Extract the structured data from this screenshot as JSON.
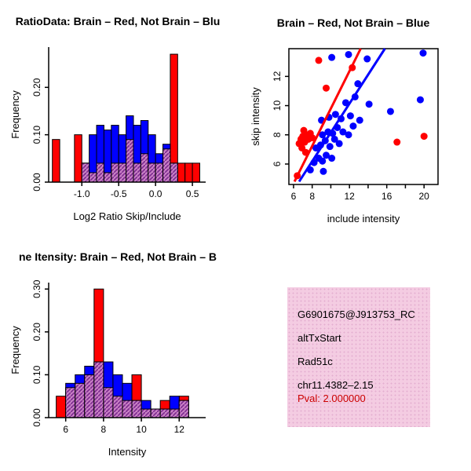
{
  "page": {
    "background": "#ffffff"
  },
  "colors": {
    "red": "#ff0000",
    "blue": "#0000ff",
    "overlap_fill": "#c87fc4",
    "overlap_line": "#7b2a8f",
    "info_bg": "#f4cce2",
    "pval_red": "#cc0000"
  },
  "chart_data": [
    {
      "id": "ratio-hist",
      "type": "histogram",
      "title": "RatioData: Brain – Red, Not Brain – Blu",
      "xlabel": "Log2 Ratio Skip/Include",
      "ylabel": "Frequency",
      "xlim": [
        -1.45,
        0.68
      ],
      "ylim": [
        0,
        0.285
      ],
      "xticks": [
        -1.0,
        -0.5,
        0.0,
        0.5
      ],
      "xtick_labels": [
        "-1.0",
        "-0.5",
        "0.0",
        "0.5"
      ],
      "yticks": [
        0,
        0.1,
        0.2
      ],
      "ytick_labels": [
        "0.00",
        "0.10",
        "0.20"
      ],
      "bins_start": -1.4,
      "bin_width": 0.1,
      "series": [
        {
          "name": "Brain (red)",
          "color": "#ff0000",
          "values": [
            0.09,
            0,
            0,
            0.1,
            0.04,
            0.02,
            0.04,
            0.02,
            0.04,
            0.04,
            0.09,
            0.04,
            0.06,
            0.04,
            0.04,
            0.07,
            0.27,
            0.04,
            0.04,
            0.04
          ]
        },
        {
          "name": "Not Brain (blue)",
          "color": "#0000ff",
          "values": [
            0,
            0,
            0,
            0,
            0.04,
            0.1,
            0.12,
            0.11,
            0.12,
            0.1,
            0.14,
            0.12,
            0.13,
            0.1,
            0.06,
            0.08,
            0.04,
            0,
            0,
            0
          ]
        }
      ],
      "overlap": [
        0,
        0,
        0,
        0,
        0.04,
        0.02,
        0.04,
        0.02,
        0.04,
        0.04,
        0.09,
        0.04,
        0.06,
        0.04,
        0.04,
        0.07,
        0.04,
        0,
        0,
        0
      ],
      "margins": {
        "l": 62,
        "r": 38,
        "t": 60,
        "b": 68
      }
    },
    {
      "id": "scatter",
      "type": "scatter",
      "title": "Brain – Red, Not Brain – Blue",
      "xlabel": "include intensity",
      "ylabel": "skip intensity",
      "xlim": [
        5.5,
        21.5
      ],
      "ylim": [
        4.6,
        13.9
      ],
      "xticks": [
        6,
        8,
        10,
        12,
        14,
        16,
        18,
        20
      ],
      "xtick_labels": [
        "6",
        "8",
        "",
        "12",
        "",
        "16",
        "",
        "20"
      ],
      "yticks": [
        6,
        8,
        10,
        12
      ],
      "ytick_labels": [
        "6",
        "8",
        "10",
        "12"
      ],
      "series": [
        {
          "name": "Not Brain (blue)",
          "color": "#0000ff",
          "points": [
            [
              7.8,
              5.6
            ],
            [
              9.2,
              5.5
            ],
            [
              8.2,
              6.1
            ],
            [
              8.7,
              6.4
            ],
            [
              9.1,
              6.2
            ],
            [
              9.5,
              6.6
            ],
            [
              10.1,
              6.4
            ],
            [
              8.4,
              7.1
            ],
            [
              8.9,
              7.3
            ],
            [
              9.4,
              7.6
            ],
            [
              9.9,
              7.2
            ],
            [
              10.4,
              7.7
            ],
            [
              10.9,
              7.4
            ],
            [
              9.1,
              8.0
            ],
            [
              9.7,
              8.2
            ],
            [
              10.2,
              8.1
            ],
            [
              10.7,
              8.5
            ],
            [
              11.3,
              8.2
            ],
            [
              11.9,
              8.0
            ],
            [
              12.4,
              8.6
            ],
            [
              9.0,
              9.0
            ],
            [
              9.8,
              9.2
            ],
            [
              10.5,
              9.4
            ],
            [
              11.1,
              9.1
            ],
            [
              12.1,
              9.3
            ],
            [
              13.1,
              9.0
            ],
            [
              16.4,
              9.6
            ],
            [
              11.6,
              10.2
            ],
            [
              12.6,
              10.6
            ],
            [
              14.1,
              10.1
            ],
            [
              19.6,
              10.4
            ],
            [
              12.9,
              11.5
            ],
            [
              10.1,
              13.3
            ],
            [
              11.9,
              13.5
            ],
            [
              13.9,
              13.2
            ],
            [
              19.9,
              13.6
            ]
          ]
        },
        {
          "name": "Brain (red)",
          "color": "#ff0000",
          "points": [
            [
              6.6,
              7.4
            ],
            [
              6.8,
              7.7
            ],
            [
              7.0,
              7.9
            ],
            [
              7.2,
              7.5
            ],
            [
              7.4,
              8.0
            ],
            [
              7.6,
              7.7
            ],
            [
              7.8,
              8.1
            ],
            [
              7.1,
              8.3
            ],
            [
              6.9,
              7.1
            ],
            [
              7.3,
              6.8
            ],
            [
              8.0,
              7.8
            ],
            [
              6.4,
              5.2
            ],
            [
              8.7,
              13.1
            ],
            [
              12.3,
              12.6
            ],
            [
              9.5,
              11.2
            ],
            [
              17.1,
              7.5
            ],
            [
              20.0,
              7.9
            ]
          ]
        }
      ],
      "lines": [
        {
          "name": "brain-fit",
          "color": "#ff0000",
          "x1": 6.1,
          "y1": 4.8,
          "x2": 13.2,
          "y2": 13.9
        },
        {
          "name": "notbrain-fit",
          "color": "#0000ff",
          "x1": 6.6,
          "y1": 4.8,
          "x2": 15.8,
          "y2": 13.9
        }
      ],
      "margins": {
        "l": 68,
        "r": 42,
        "t": 62,
        "b": 65
      }
    },
    {
      "id": "intensity-hist",
      "type": "histogram",
      "title": "ne Itensity: Brain – Red, Not Brain – B",
      "xlabel": "Intensity",
      "ylabel": "Frequency",
      "xlim": [
        5.1,
        13.4
      ],
      "ylim": [
        0,
        0.315
      ],
      "xticks": [
        6,
        8,
        10,
        12
      ],
      "xtick_labels": [
        "6",
        "8",
        "10",
        "12"
      ],
      "yticks": [
        0,
        0.1,
        0.2,
        0.3
      ],
      "ytick_labels": [
        "0.00",
        "0.10",
        "0.20",
        "0.30"
      ],
      "bins_start": 5.5,
      "bin_width": 0.5,
      "series": [
        {
          "name": "Brain (red)",
          "color": "#ff0000",
          "values": [
            0.05,
            0.07,
            0.08,
            0.1,
            0.3,
            0.07,
            0.05,
            0.04,
            0.1,
            0.02,
            0.02,
            0.04,
            0.02,
            0.05,
            0
          ]
        },
        {
          "name": "Not Brain (blue)",
          "color": "#0000ff",
          "values": [
            0,
            0.08,
            0.1,
            0.12,
            0.13,
            0.13,
            0.1,
            0.08,
            0.04,
            0.04,
            0.02,
            0.02,
            0.05,
            0.04,
            0
          ]
        }
      ],
      "overlap": [
        0,
        0.07,
        0.08,
        0.1,
        0.13,
        0.07,
        0.05,
        0.04,
        0.04,
        0.02,
        0.02,
        0.02,
        0.02,
        0.04,
        0
      ],
      "margins": {
        "l": 62,
        "r": 38,
        "t": 60,
        "b": 68
      }
    }
  ],
  "info": {
    "gene_id": "G6901675@J913753_RC",
    "event_type": "altTxStart",
    "gene_symbol": "Rad51c",
    "locus": "chr11.4382–2.15",
    "pval": "Pval: 2.000000"
  }
}
